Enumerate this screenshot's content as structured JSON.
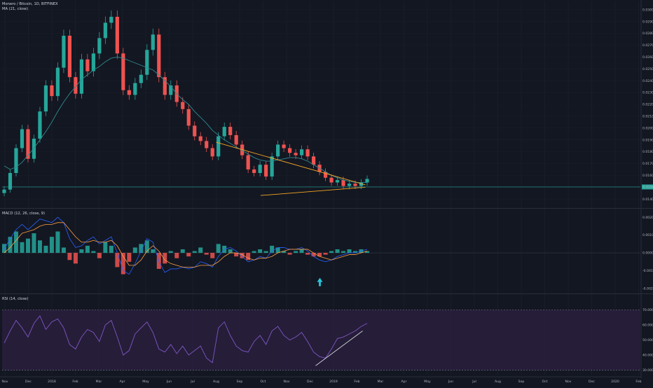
{
  "colors": {
    "background": "#131722",
    "up": "#26a69a",
    "down": "#ef5350",
    "ma": "#2e8a8f",
    "trendline": "#f5a623",
    "price_line": "#26a69a",
    "macd": "#2962ff",
    "signal": "#ff9f43",
    "rsi": "#7e57c2",
    "rsi_band": "#2a1f3d",
    "arrow": "#26c6da",
    "divergence_line": "#d1d4dc"
  },
  "panes": {
    "price": {
      "title": "Monero / Bitcoin, 1D, BITFINEX",
      "indicator": "MA (21, close)",
      "last_price_label": "0.01502"
    },
    "macd": {
      "title": "MACD (12, 26, close, 9)"
    },
    "rsi": {
      "title": "RSI (14, close)"
    }
  },
  "chart_data": [
    {
      "type": "candlestick",
      "title": "Monero / Bitcoin, 1D, BITFINEX",
      "x_ticks": [
        "Nov",
        "Dec",
        "2018",
        "Feb",
        "Mar",
        "Apr",
        "May",
        "Jun",
        "Jul",
        "Aug",
        "Sep",
        "Oct",
        "Nov",
        "Dec",
        "2019",
        "Feb",
        "Mar",
        "Apr",
        "May",
        "Jun",
        "Jul",
        "Aug",
        "Sep",
        "Oct",
        "Nov",
        "Dec",
        "2020",
        "Feb"
      ],
      "y_ticks": [
        0.03,
        0.029,
        0.028,
        0.027,
        0.026,
        0.025,
        0.024,
        0.023,
        0.022,
        0.021,
        0.02,
        0.019,
        0.018,
        0.017,
        0.016,
        0.015,
        0.014
      ],
      "y_tick_labels": [
        "0.03000",
        "0.02900",
        "0.02800",
        "0.02700",
        "0.02600",
        "0.02500",
        "0.02400",
        "0.02300",
        "0.02200",
        "0.02100",
        "0.02000",
        "0.01900",
        "0.01800",
        "0.01700",
        "0.01600",
        "0.01500",
        "0.01400"
      ],
      "ylim": [
        0.0133,
        0.0307
      ],
      "last_price": 0.01502,
      "series": [
        {
          "name": "price (approx. weekly closes)",
          "values": [
            0.0148,
            0.0162,
            0.0183,
            0.0199,
            0.0174,
            0.0191,
            0.0214,
            0.0236,
            0.0227,
            0.0251,
            0.0278,
            0.0243,
            0.0229,
            0.0258,
            0.0248,
            0.0263,
            0.0276,
            0.0289,
            0.0294,
            0.0263,
            0.0232,
            0.0228,
            0.0238,
            0.0245,
            0.0266,
            0.0279,
            0.0243,
            0.0228,
            0.0236,
            0.0222,
            0.0216,
            0.0202,
            0.0193,
            0.0189,
            0.0183,
            0.0176,
            0.0193,
            0.0201,
            0.0194,
            0.0186,
            0.0177,
            0.0165,
            0.0162,
            0.0169,
            0.0159,
            0.0176,
            0.0186,
            0.0183,
            0.0179,
            0.0177,
            0.0182,
            0.0176,
            0.0169,
            0.0163,
            0.0158,
            0.0154,
            0.0156,
            0.0151,
            0.0153,
            0.0151,
            0.0154,
            0.0157
          ]
        },
        {
          "name": "MA (21, close)",
          "values": [
            0.0168,
            0.0165,
            0.0167,
            0.0171,
            0.0177,
            0.0183,
            0.019,
            0.0197,
            0.0205,
            0.0214,
            0.0222,
            0.0229,
            0.0235,
            0.0241,
            0.0245,
            0.0249,
            0.0252,
            0.0256,
            0.0259,
            0.026,
            0.0259,
            0.0257,
            0.0255,
            0.0253,
            0.0251,
            0.0249,
            0.0245,
            0.024,
            0.0235,
            0.0229,
            0.0224,
            0.022,
            0.0214,
            0.0209,
            0.0204,
            0.0198,
            0.0194,
            0.019,
            0.0187,
            0.0184,
            0.0181,
            0.0178,
            0.0175,
            0.0173,
            0.0172,
            0.0172,
            0.0173,
            0.0174,
            0.0175,
            0.0175,
            0.0174,
            0.0172,
            0.0169,
            0.0166,
            0.0163,
            0.016,
            0.0158,
            0.0156,
            0.0155,
            0.0154,
            0.0154,
            0.0154
          ]
        }
      ],
      "annotations": {
        "triangle_upper": {
          "from": {
            "x": "Aug",
            "y": 0.0188
          },
          "to": {
            "x": "Feb",
            "y": 0.0152
          }
        },
        "triangle_lower": {
          "from": {
            "x": "Sep",
            "y": 0.0143
          },
          "to": {
            "x": "Feb",
            "y": 0.015
          }
        }
      }
    },
    {
      "type": "bar",
      "title": "MACD (12, 26, close, 9)",
      "y_ticks": [
        0.002,
        0.001,
        0.0,
        -0.001,
        -0.002
      ],
      "y_tick_labels": [
        "0.00200",
        "0.00100",
        "0.00000",
        "-0.00100",
        "-0.00200"
      ],
      "ylim": [
        -0.0022,
        0.0024
      ],
      "series": [
        {
          "name": "histogram",
          "values": [
            0.0005,
            0.0009,
            0.0012,
            0.0006,
            0.0008,
            0.0011,
            0.0007,
            0.0004,
            0.0009,
            0.0012,
            0.0003,
            -0.0004,
            -0.0006,
            0.0002,
            0.0004,
            0.0001,
            -0.0003,
            0.0006,
            0.0004,
            -0.0008,
            -0.0012,
            -0.0005,
            0.0003,
            0.0005,
            0.0007,
            0.0002,
            -0.0009,
            -0.0006,
            0.0001,
            -0.0003,
            0.0002,
            -0.0002,
            0.0001,
            0.0003,
            -0.0001,
            -0.0003,
            0.0005,
            0.0004,
            0.0002,
            -0.0002,
            -0.0003,
            -0.0004,
            0.0001,
            0.0002,
            0.0001,
            0.0004,
            0.0003,
            0.0001,
            -0.0001,
            0.0001,
            0.0002,
            -0.0001,
            -0.0002,
            -0.0002,
            -0.0001,
            0.0001,
            0.0002,
            0.0001,
            0.0002,
            0.0001,
            0.0002,
            0.0001
          ]
        },
        {
          "name": "MACD",
          "values": [
            0.0002,
            0.0008,
            0.0013,
            0.0016,
            0.0013,
            0.0016,
            0.0019,
            0.0018,
            0.0017,
            0.002,
            0.0017,
            0.0008,
            0.0003,
            0.0004,
            0.0007,
            0.0009,
            0.0005,
            0.0007,
            0.0009,
            0.0,
            -0.001,
            -0.0012,
            -0.0006,
            0.0001,
            0.0008,
            0.0006,
            -0.0005,
            -0.0011,
            -0.0009,
            -0.0009,
            -0.0008,
            -0.0009,
            -0.0008,
            -0.0005,
            -0.0006,
            -0.0008,
            -0.0002,
            0.0002,
            0.0003,
            0.0001,
            -0.0002,
            -0.0005,
            -0.0004,
            -0.0002,
            -0.0003,
            0.0001,
            0.0003,
            0.0003,
            0.0002,
            0.0002,
            0.0003,
            0.0001,
            -0.0002,
            -0.0004,
            -0.0005,
            -0.0004,
            -0.0002,
            -0.0001,
            0.0,
            0.0,
            0.0001,
            0.0002
          ]
        },
        {
          "name": "signal",
          "values": [
            0.0,
            0.0003,
            0.0007,
            0.0011,
            0.0012,
            0.0013,
            0.0015,
            0.0016,
            0.0016,
            0.0017,
            0.0017,
            0.0013,
            0.0009,
            0.0006,
            0.0006,
            0.0007,
            0.0006,
            0.0006,
            0.0007,
            0.0004,
            -0.0002,
            -0.0007,
            -0.0007,
            -0.0004,
            0.0001,
            0.0004,
            0.0001,
            -0.0004,
            -0.0006,
            -0.0007,
            -0.0008,
            -0.0008,
            -0.0008,
            -0.0007,
            -0.0007,
            -0.0007,
            -0.0005,
            -0.0002,
            0.0,
            0.0,
            -0.0001,
            -0.0003,
            -0.0004,
            -0.0003,
            -0.0003,
            -0.0002,
            0.0,
            0.0001,
            0.0002,
            0.0002,
            0.0002,
            0.0002,
            0.0,
            -0.0002,
            -0.0003,
            -0.0004,
            -0.0003,
            -0.0002,
            -0.0001,
            -0.0001,
            0.0,
            0.0001
          ]
        }
      ],
      "annotations": {
        "arrow_up": {
          "x": "Dec",
          "y": -0.0014
        }
      }
    },
    {
      "type": "line",
      "title": "RSI (14, close)",
      "y_ticks": [
        70,
        60,
        50,
        40,
        30
      ],
      "y_tick_labels": [
        "70.0000",
        "60.0000",
        "50.0000",
        "40.0000",
        "30.0000"
      ],
      "ylim": [
        27,
        79
      ],
      "band": [
        30,
        70
      ],
      "series": [
        {
          "name": "RSI",
          "values": [
            48,
            56,
            63,
            58,
            52,
            61,
            66,
            57,
            62,
            64,
            58,
            47,
            44,
            52,
            57,
            55,
            49,
            60,
            63,
            52,
            40,
            43,
            54,
            58,
            62,
            55,
            44,
            42,
            47,
            41,
            46,
            40,
            43,
            46,
            38,
            35,
            58,
            62,
            53,
            46,
            43,
            42,
            49,
            53,
            47,
            56,
            59,
            53,
            50,
            52,
            55,
            49,
            42,
            39,
            38,
            44,
            51,
            52,
            54,
            56,
            59,
            61
          ]
        }
      ],
      "annotations": {
        "divergence_line": {
          "from": {
            "x": "Dec",
            "y": 33
          },
          "to": {
            "x": "Feb",
            "y": 56
          }
        }
      }
    }
  ]
}
